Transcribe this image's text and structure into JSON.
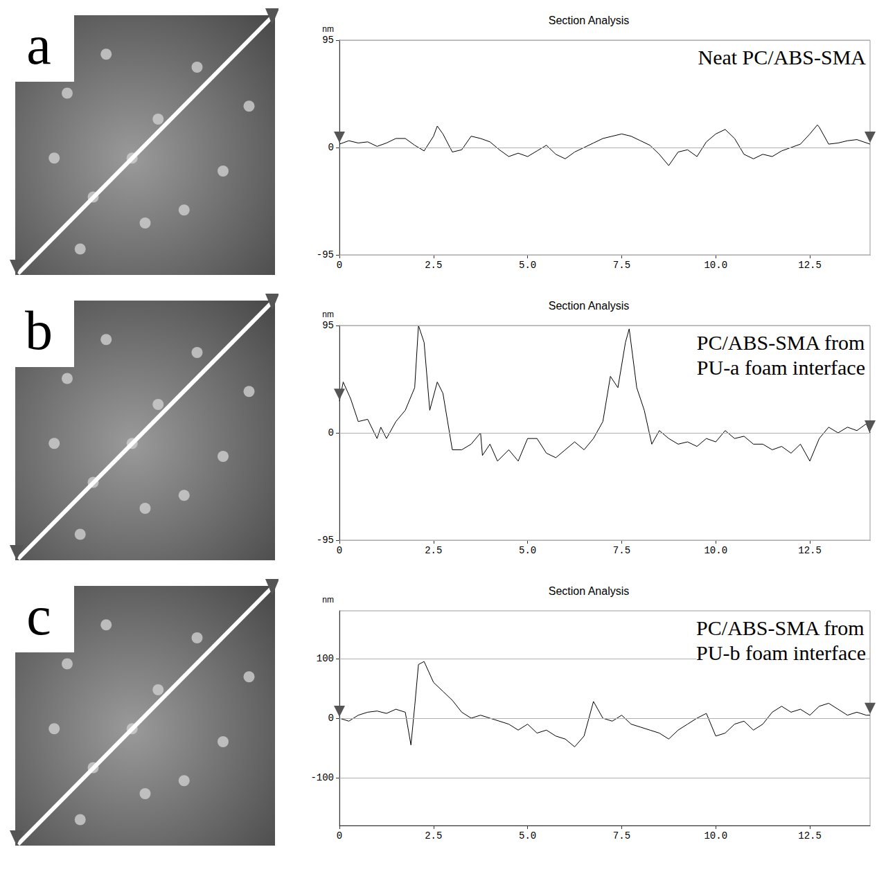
{
  "chart_data": [
    {
      "type": "line",
      "panel": "a",
      "title": "Section Analysis",
      "y_label": "nm",
      "annotation": "Neat PC/ABS-SMA",
      "color": "#000000",
      "grid": true,
      "xlim": [
        0,
        14.1
      ],
      "ylim": [
        -95,
        95
      ],
      "xticks": [
        0,
        2.5,
        {
          "value": 5,
          "label": "5.0"
        },
        7.5,
        {
          "value": 10,
          "label": "10.0"
        },
        12.5
      ],
      "yticks": [
        -95,
        0,
        95
      ],
      "x": [
        0,
        0.25,
        0.5,
        0.75,
        1.0,
        1.25,
        1.5,
        1.75,
        2.0,
        2.25,
        2.5,
        2.6,
        2.75,
        3.0,
        3.25,
        3.5,
        3.75,
        4.0,
        4.25,
        4.5,
        4.75,
        5.0,
        5.25,
        5.5,
        5.75,
        6.0,
        6.25,
        6.5,
        6.75,
        7.0,
        7.25,
        7.5,
        7.75,
        8.0,
        8.25,
        8.5,
        8.75,
        9.0,
        9.25,
        9.5,
        9.75,
        10.0,
        10.25,
        10.5,
        10.75,
        11.0,
        11.25,
        11.5,
        11.75,
        12.0,
        12.25,
        12.5,
        12.7,
        12.75,
        13.0,
        13.25,
        13.5,
        13.75,
        14.1
      ],
      "values": [
        3,
        6,
        4,
        5,
        1,
        4,
        8,
        8,
        2,
        -3,
        10,
        19,
        12,
        -4,
        -2,
        10,
        8,
        5,
        -2,
        -8,
        -5,
        -8,
        -3,
        2,
        -6,
        -10,
        -4,
        0,
        4,
        8,
        10,
        12,
        10,
        6,
        2,
        -6,
        -16,
        -4,
        -2,
        -8,
        5,
        12,
        16,
        8,
        -6,
        -10,
        -6,
        -8,
        -3,
        0,
        3,
        12,
        20,
        18,
        3,
        4,
        6,
        7,
        3
      ]
    },
    {
      "type": "line",
      "panel": "b",
      "title": "Section Analysis",
      "y_label": "nm",
      "annotation": "PC/ABS-SMA from\nPU-a foam interface",
      "color": "#000000",
      "grid": true,
      "xlim": [
        0,
        14.1
      ],
      "ylim": [
        -95,
        95
      ],
      "xticks": [
        0,
        2.5,
        {
          "value": 5,
          "label": "5.0"
        },
        7.5,
        {
          "value": 10,
          "label": "10.0"
        },
        12.5
      ],
      "yticks": [
        -95,
        0,
        95
      ],
      "x": [
        0,
        0.1,
        0.3,
        0.5,
        0.75,
        1.0,
        1.1,
        1.25,
        1.5,
        1.75,
        2.0,
        2.1,
        2.25,
        2.4,
        2.6,
        2.75,
        3.0,
        3.25,
        3.5,
        3.75,
        3.8,
        4.0,
        4.2,
        4.5,
        4.75,
        5.0,
        5.25,
        5.5,
        5.75,
        6.0,
        6.25,
        6.5,
        6.75,
        7.0,
        7.2,
        7.4,
        7.6,
        7.7,
        7.9,
        8.1,
        8.3,
        8.5,
        8.75,
        9.0,
        9.25,
        9.5,
        9.75,
        10.0,
        10.25,
        10.5,
        10.75,
        11.0,
        11.25,
        11.5,
        11.75,
        12.0,
        12.25,
        12.5,
        12.75,
        13.0,
        13.25,
        13.5,
        13.75,
        14.0,
        14.1
      ],
      "values": [
        28,
        45,
        30,
        10,
        12,
        -5,
        5,
        -5,
        10,
        20,
        40,
        95,
        80,
        20,
        45,
        35,
        -15,
        -15,
        -10,
        0,
        -20,
        -10,
        -25,
        -15,
        -25,
        -5,
        -5,
        -18,
        -22,
        -15,
        -8,
        -15,
        -5,
        10,
        50,
        40,
        80,
        92,
        40,
        20,
        -10,
        2,
        -5,
        -10,
        -8,
        -12,
        -5,
        -8,
        2,
        -5,
        -3,
        -10,
        -10,
        -15,
        -12,
        -18,
        -10,
        -25,
        -5,
        5,
        0,
        5,
        2,
        8,
        0
      ]
    },
    {
      "type": "line",
      "panel": "c",
      "title": "Section Analysis",
      "y_label": "nm",
      "annotation": "PC/ABS-SMA from\nPU-b foam interface",
      "color": "#000000",
      "grid": true,
      "xlim": [
        0,
        14.1
      ],
      "ylim": [
        -180,
        180
      ],
      "xticks": [
        0,
        2.5,
        {
          "value": 5,
          "label": "5.0"
        },
        7.5,
        {
          "value": 10,
          "label": "10.0"
        },
        12.5
      ],
      "yticks": [
        -100,
        0,
        100
      ],
      "x": [
        0,
        0.25,
        0.5,
        0.75,
        1.0,
        1.25,
        1.5,
        1.75,
        1.9,
        2.0,
        2.1,
        2.25,
        2.5,
        2.75,
        3.0,
        3.25,
        3.5,
        3.75,
        4.0,
        4.25,
        4.5,
        4.75,
        5.0,
        5.25,
        5.5,
        5.75,
        6.0,
        6.25,
        6.5,
        6.75,
        7.0,
        7.25,
        7.5,
        7.75,
        8.0,
        8.25,
        8.5,
        8.75,
        9.0,
        9.25,
        9.5,
        9.75,
        10.0,
        10.25,
        10.5,
        10.75,
        11.0,
        11.25,
        11.5,
        11.75,
        12.0,
        12.25,
        12.5,
        12.75,
        13.0,
        13.25,
        13.5,
        13.75,
        14.0,
        14.1
      ],
      "values": [
        0,
        -5,
        5,
        10,
        12,
        8,
        15,
        10,
        -45,
        20,
        90,
        95,
        60,
        45,
        30,
        10,
        0,
        5,
        0,
        -5,
        -10,
        -20,
        -10,
        -25,
        -20,
        -30,
        -35,
        -48,
        -30,
        28,
        0,
        -5,
        5,
        -10,
        -15,
        -20,
        -25,
        -35,
        -20,
        -10,
        0,
        8,
        -30,
        -25,
        -10,
        -5,
        -20,
        -10,
        10,
        20,
        10,
        15,
        5,
        20,
        25,
        15,
        5,
        10,
        5,
        5
      ]
    }
  ]
}
